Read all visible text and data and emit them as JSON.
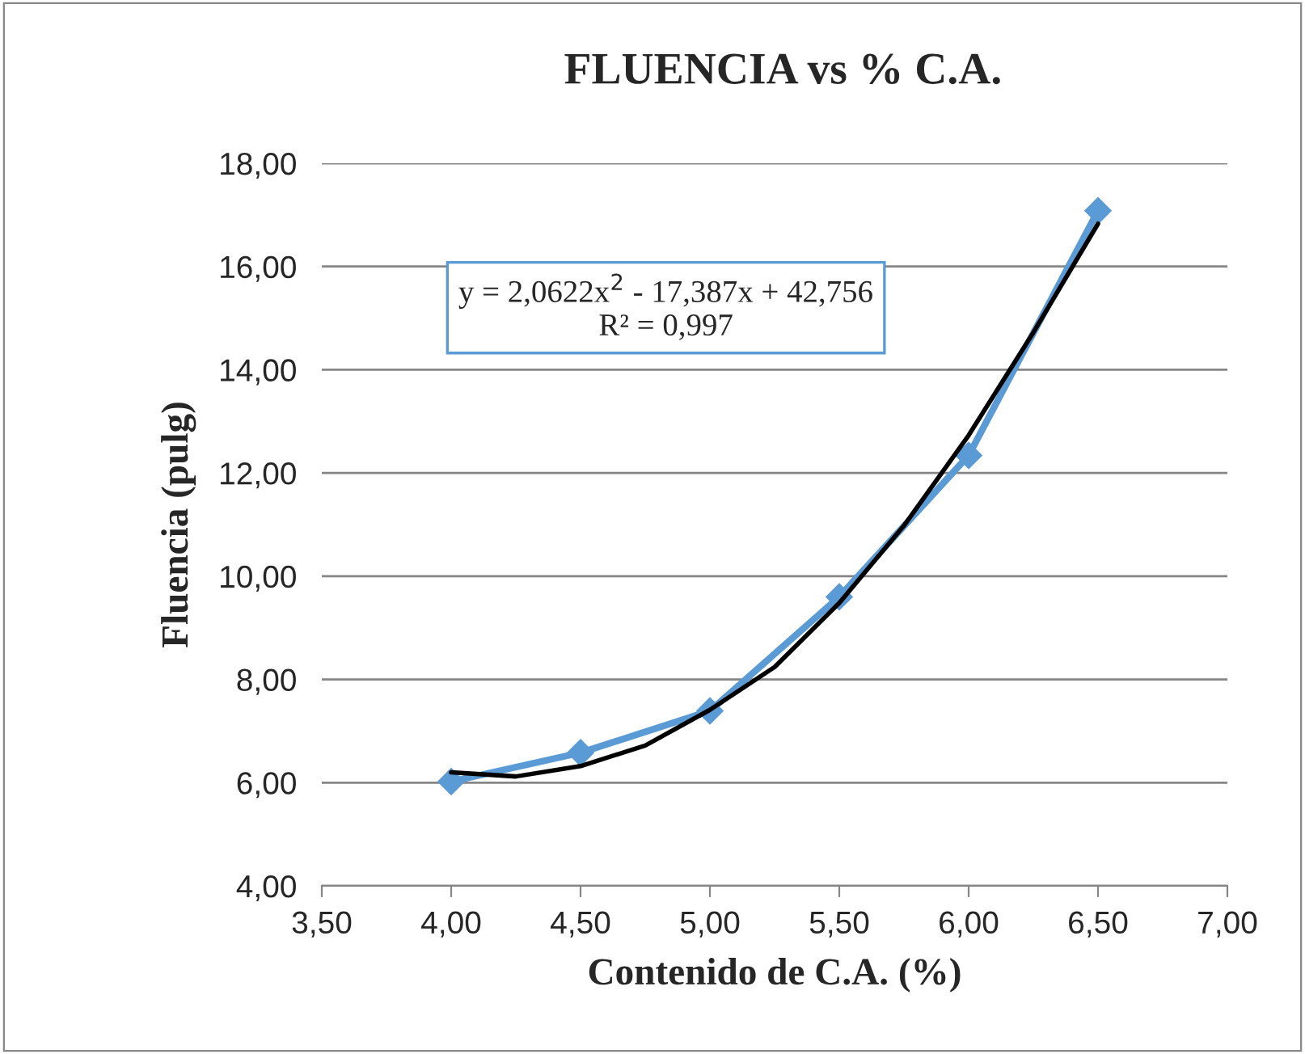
{
  "chart_data": {
    "type": "line",
    "title": "FLUENCIA vs % C.A.",
    "xlabel": "Contenido de C.A. (%)",
    "ylabel": "Fluencia (pulg)",
    "series": [
      {
        "color": "#5b9bd5",
        "marker": "diamond",
        "x": [
          4.0,
          4.5,
          5.0,
          5.5,
          6.0,
          6.5
        ],
        "values": [
          6.02,
          6.58,
          7.39,
          9.6,
          12.34,
          17.08
        ]
      },
      {
        "color": "#000000",
        "marker": "none",
        "x": [
          4.0,
          4.25,
          4.5,
          4.75,
          5.0,
          5.25,
          5.5,
          5.75,
          6.0,
          6.25,
          6.5
        ],
        "values": [
          6.2,
          6.12,
          6.32,
          6.72,
          7.41,
          8.24,
          9.48,
          10.98,
          12.73,
          14.72,
          16.83
        ]
      }
    ],
    "annotations": [
      "y = 2,0622x$^{2}$ - 17,387x + 42,756\nR² = 0,997"
    ],
    "xlim": [
      3.5,
      7.0
    ],
    "ylim": [
      4,
      18
    ],
    "xticks": [
      {
        "value": 3.5,
        "label": "3,50"
      },
      {
        "value": 4.0,
        "label": "4,00"
      },
      {
        "value": 4.5,
        "label": "4,50"
      },
      {
        "value": 5.0,
        "label": "5,00"
      },
      {
        "value": 5.5,
        "label": "5,50"
      },
      {
        "value": 6.0,
        "label": "6,00"
      },
      {
        "value": 6.5,
        "label": "6,50"
      },
      {
        "value": 7.0,
        "label": "7,00"
      }
    ],
    "yticks": [
      {
        "value": 4,
        "label": "4,00"
      },
      {
        "value": 6,
        "label": "6,00"
      },
      {
        "value": 8,
        "label": "8,00"
      },
      {
        "value": 10,
        "label": "10,00"
      },
      {
        "value": 12,
        "label": "12,00"
      },
      {
        "value": 14,
        "label": "14,00"
      },
      {
        "value": 16,
        "label": "16,00"
      },
      {
        "value": 18,
        "label": "18,00"
      }
    ],
    "grid": "y",
    "legend": false
  }
}
